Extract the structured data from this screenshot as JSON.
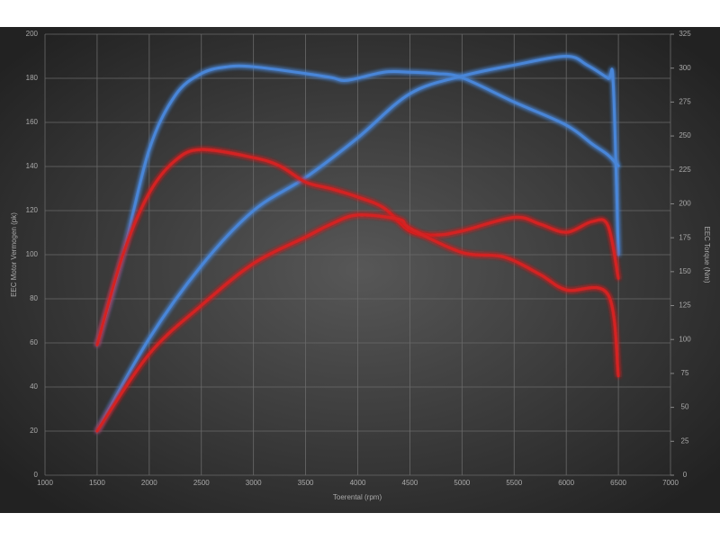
{
  "chart_data": {
    "type": "line",
    "x_label": "Toerental (rpm)",
    "y_label": "EEC Motor Vermogen (pk)",
    "y2_label": "EEC Torque (Nm)",
    "xlim": [
      1000,
      7000
    ],
    "xticks": [
      1000,
      1500,
      2000,
      2500,
      3000,
      3500,
      4000,
      4500,
      5000,
      5500,
      6000,
      6500,
      7000
    ],
    "ylim": [
      0,
      200
    ],
    "yticks": [
      0,
      20,
      40,
      60,
      80,
      100,
      120,
      140,
      160,
      180,
      200
    ],
    "y2lim": [
      0,
      325
    ],
    "y2ticks": [
      0,
      25,
      50,
      75,
      100,
      125,
      150,
      175,
      200,
      225,
      250,
      275,
      300,
      325
    ],
    "grid": true,
    "series": [
      {
        "color": "#4a86d8",
        "axis": "y2",
        "x": [
          1500,
          1750,
          2000,
          2250,
          2500,
          2750,
          3000,
          3500,
          3750,
          3900,
          4250,
          4500,
          4750,
          5000,
          5500,
          6000,
          6250,
          6400,
          6500
        ],
        "values": [
          96,
          163,
          240,
          280,
          296,
          301,
          301,
          296,
          293,
          291,
          297,
          297,
          296,
          293,
          275,
          258,
          244,
          236,
          228
        ]
      },
      {
        "color": "#4a86d8",
        "x": [
          1500,
          2000,
          2500,
          3000,
          3500,
          4000,
          4500,
          5000,
          5500,
          6000,
          6200,
          6400,
          6450,
          6500
        ],
        "values": [
          20,
          62,
          95,
          120,
          135,
          153,
          173,
          181,
          186,
          190,
          186,
          180,
          178,
          100
        ]
      },
      {
        "color": "#d42424",
        "axis": "y2",
        "x": [
          1500,
          1750,
          2000,
          2250,
          2500,
          3000,
          3250,
          3500,
          3750,
          4000,
          4250,
          4500,
          4750,
          5000,
          5500,
          5750,
          6000,
          6250,
          6400,
          6500
        ],
        "values": [
          96,
          163,
          208,
          232,
          240,
          234,
          228,
          216,
          211,
          205,
          197,
          180,
          177,
          180,
          190,
          185,
          179,
          187,
          184,
          145
        ]
      },
      {
        "color": "#d42424",
        "x": [
          1500,
          2000,
          2500,
          3000,
          3500,
          3750,
          4000,
          4400,
          4500,
          5000,
          5400,
          5750,
          6000,
          6400,
          6500
        ],
        "values": [
          20,
          55,
          77,
          96,
          108,
          114,
          118,
          116,
          112,
          101,
          99,
          91,
          84,
          82,
          45
        ]
      }
    ]
  }
}
